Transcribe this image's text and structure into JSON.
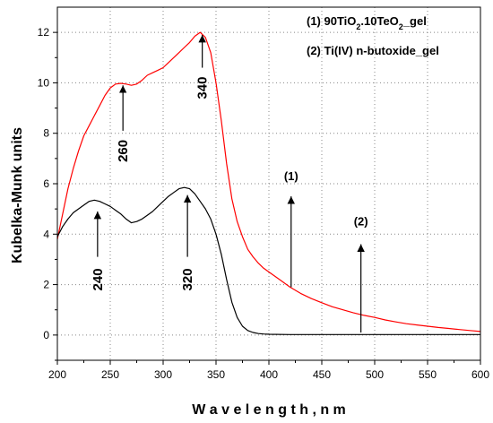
{
  "chart_data": {
    "type": "line",
    "xlabel": "W a v e l e n g t h , n m",
    "ylabel": "Kubelka-Munk units",
    "xlim": [
      200,
      600
    ],
    "ylim": [
      -1,
      13
    ],
    "xticks": [
      200,
      250,
      300,
      350,
      400,
      450,
      500,
      550,
      600
    ],
    "yticks": [
      0,
      2,
      4,
      6,
      8,
      10,
      12
    ],
    "grid": true,
    "series": [
      {
        "name": "(1) 90TiO2.10TeO2_gel",
        "legend_parts": [
          "(1) 90TiO",
          "2",
          ".10TeO",
          "2",
          "_gel"
        ],
        "color": "#ff0000",
        "x": [
          200,
          205,
          210,
          215,
          220,
          225,
          230,
          235,
          240,
          245,
          250,
          255,
          260,
          265,
          270,
          275,
          280,
          285,
          290,
          295,
          300,
          305,
          310,
          315,
          320,
          325,
          330,
          335,
          340,
          345,
          350,
          355,
          360,
          365,
          370,
          375,
          380,
          385,
          390,
          395,
          400,
          410,
          420,
          430,
          440,
          450,
          460,
          470,
          480,
          490,
          500,
          510,
          520,
          530,
          540,
          550,
          560,
          570,
          580,
          590,
          600
        ],
        "y": [
          3.8,
          4.8,
          5.8,
          6.6,
          7.3,
          7.9,
          8.3,
          8.7,
          9.1,
          9.5,
          9.8,
          9.95,
          9.98,
          9.95,
          9.9,
          9.95,
          10.1,
          10.3,
          10.4,
          10.5,
          10.6,
          10.8,
          11.0,
          11.2,
          11.4,
          11.6,
          11.85,
          12.0,
          11.8,
          11.2,
          10.0,
          8.5,
          6.8,
          5.4,
          4.5,
          3.9,
          3.4,
          3.1,
          2.85,
          2.65,
          2.5,
          2.2,
          1.9,
          1.65,
          1.45,
          1.28,
          1.12,
          1.0,
          0.88,
          0.78,
          0.7,
          0.6,
          0.52,
          0.45,
          0.4,
          0.35,
          0.3,
          0.26,
          0.22,
          0.18,
          0.14
        ]
      },
      {
        "name": "(2) Ti(IV) n-butoxide_gel",
        "legend_parts": [
          "(2) Ti(IV) n-butoxide_gel"
        ],
        "color": "#000000",
        "x": [
          200,
          205,
          210,
          215,
          220,
          225,
          230,
          235,
          240,
          245,
          250,
          255,
          260,
          265,
          270,
          275,
          280,
          285,
          290,
          295,
          300,
          305,
          310,
          315,
          320,
          325,
          330,
          335,
          340,
          345,
          350,
          355,
          360,
          365,
          370,
          375,
          380,
          385,
          390,
          395,
          400,
          420,
          450,
          500,
          550,
          600
        ],
        "y": [
          3.9,
          4.3,
          4.6,
          4.85,
          5.0,
          5.15,
          5.3,
          5.35,
          5.3,
          5.2,
          5.1,
          4.95,
          4.8,
          4.6,
          4.45,
          4.5,
          4.6,
          4.75,
          4.9,
          5.1,
          5.3,
          5.5,
          5.65,
          5.8,
          5.85,
          5.8,
          5.6,
          5.3,
          5.0,
          4.6,
          4.0,
          3.2,
          2.2,
          1.3,
          0.7,
          0.35,
          0.18,
          0.1,
          0.06,
          0.04,
          0.03,
          0.02,
          0.02,
          0.02,
          0.02,
          0.02
        ]
      }
    ],
    "annotations": [
      {
        "text": "260",
        "x": 262,
        "arrow_from": 8.1,
        "arrow_to": 9.9,
        "label_y": 7.3,
        "rotated": true
      },
      {
        "text": "340",
        "x": 337,
        "arrow_from": 10.6,
        "arrow_to": 11.9,
        "label_y": 9.8,
        "rotated": true
      },
      {
        "text": "240",
        "x": 238,
        "arrow_from": 3.1,
        "arrow_to": 4.9,
        "label_y": 2.2,
        "rotated": true
      },
      {
        "text": "320",
        "x": 323,
        "arrow_from": 3.1,
        "arrow_to": 5.55,
        "label_y": 2.2,
        "rotated": true
      },
      {
        "text": "(1)",
        "x": 421,
        "arrow_from": 1.9,
        "arrow_to": 5.5,
        "label_y": 6.15,
        "rotated": false
      },
      {
        "text": "(2)",
        "x": 487,
        "arrow_from": 0.1,
        "arrow_to": 3.6,
        "label_y": 4.35,
        "rotated": false
      }
    ]
  }
}
